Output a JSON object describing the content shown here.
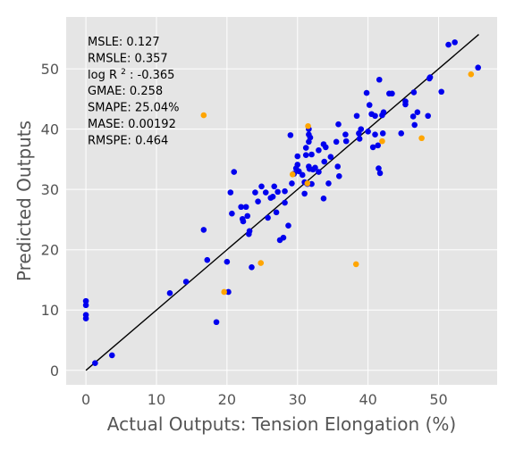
{
  "chart_data": {
    "type": "scatter",
    "title": "",
    "xlabel": "Actual Outputs: Tension Elongation (%)",
    "ylabel": "Predicted Outputs",
    "xlim": [
      -2.8,
      58.3
    ],
    "ylim": [
      -2.4,
      58.6
    ],
    "xticks": [
      0,
      10,
      20,
      30,
      40,
      50
    ],
    "yticks": [
      0,
      10,
      20,
      30,
      40,
      50
    ],
    "grid": true,
    "background": "#e5e5e5",
    "colors": {
      "primary": "#0000ee",
      "secondary": "#ffa500",
      "fit_line": "#000000",
      "grid": "#ffffff"
    },
    "metrics": [
      {
        "name": "MSLE",
        "value": "0.127"
      },
      {
        "name": "RMSLE",
        "value": "0.357"
      },
      {
        "name": "log R",
        "sup": "2",
        "value": "-0.365"
      },
      {
        "name": "GMAE",
        "value": "0.258"
      },
      {
        "name": "SMAPE",
        "value": "25.04%"
      },
      {
        "name": "MASE",
        "value": "0.00192"
      },
      {
        "name": "RMSPE",
        "value": "0.464"
      }
    ],
    "fit_line": {
      "x": [
        0,
        55.7
      ],
      "y": [
        0,
        55.7
      ]
    },
    "series": [
      {
        "color": "#0000ee",
        "points": [
          [
            0.0,
            11.5
          ],
          [
            0.0,
            10.8
          ],
          [
            0.0,
            9.2
          ],
          [
            0.0,
            8.6
          ],
          [
            1.3,
            1.2
          ],
          [
            3.7,
            2.5
          ],
          [
            11.9,
            12.8
          ],
          [
            14.2,
            14.7
          ],
          [
            16.7,
            23.3
          ],
          [
            17.2,
            18.3
          ],
          [
            18.5,
            8.0
          ],
          [
            20.0,
            18.0
          ],
          [
            20.2,
            13.0
          ],
          [
            20.5,
            29.5
          ],
          [
            20.7,
            26.0
          ],
          [
            21.0,
            32.9
          ],
          [
            22.0,
            27.1
          ],
          [
            22.2,
            25.1
          ],
          [
            22.3,
            24.7
          ],
          [
            22.7,
            27.1
          ],
          [
            22.9,
            25.6
          ],
          [
            23.1,
            22.6
          ],
          [
            23.2,
            23.1
          ],
          [
            23.5,
            17.1
          ],
          [
            24.0,
            29.5
          ],
          [
            24.4,
            28.0
          ],
          [
            24.9,
            30.5
          ],
          [
            25.5,
            29.5
          ],
          [
            25.8,
            25.3
          ],
          [
            26.2,
            28.6
          ],
          [
            26.5,
            28.8
          ],
          [
            26.7,
            30.5
          ],
          [
            27.0,
            26.2
          ],
          [
            27.2,
            29.6
          ],
          [
            27.5,
            21.6
          ],
          [
            28.0,
            22.0
          ],
          [
            28.2,
            27.8
          ],
          [
            28.2,
            29.7
          ],
          [
            28.7,
            24.0
          ],
          [
            29.0,
            39.0
          ],
          [
            29.2,
            31.0
          ],
          [
            29.5,
            32.6
          ],
          [
            29.8,
            33.5
          ],
          [
            30.0,
            35.5
          ],
          [
            30.0,
            34.1
          ],
          [
            30.2,
            33.0
          ],
          [
            30.7,
            32.4
          ],
          [
            31.0,
            29.3
          ],
          [
            31.0,
            31.2
          ],
          [
            31.2,
            35.7
          ],
          [
            31.2,
            36.9
          ],
          [
            31.4,
            30.9
          ],
          [
            31.6,
            40.0
          ],
          [
            31.6,
            39.1
          ],
          [
            31.6,
            37.9
          ],
          [
            31.8,
            38.6
          ],
          [
            31.6,
            33.8
          ],
          [
            31.7,
            33.4
          ],
          [
            32.0,
            35.8
          ],
          [
            32.0,
            30.9
          ],
          [
            32.2,
            33.3
          ],
          [
            32.5,
            33.6
          ],
          [
            33.0,
            36.5
          ],
          [
            33.0,
            32.9
          ],
          [
            33.7,
            28.5
          ],
          [
            33.8,
            34.6
          ],
          [
            33.7,
            37.5
          ],
          [
            34.0,
            37.0
          ],
          [
            34.4,
            31.0
          ],
          [
            34.7,
            35.4
          ],
          [
            35.5,
            37.9
          ],
          [
            35.7,
            33.8
          ],
          [
            35.8,
            40.8
          ],
          [
            35.9,
            32.2
          ],
          [
            36.8,
            39.1
          ],
          [
            36.9,
            38.0
          ],
          [
            38.4,
            42.2
          ],
          [
            38.7,
            39.3
          ],
          [
            38.8,
            38.4
          ],
          [
            39.0,
            40.0
          ],
          [
            39.8,
            46.0
          ],
          [
            40.0,
            39.6
          ],
          [
            40.2,
            44.0
          ],
          [
            40.5,
            42.5
          ],
          [
            40.7,
            37.0
          ],
          [
            41.0,
            42.2
          ],
          [
            41.0,
            39.1
          ],
          [
            41.4,
            37.3
          ],
          [
            41.5,
            33.5
          ],
          [
            41.6,
            48.2
          ],
          [
            41.7,
            32.7
          ],
          [
            42.0,
            42.3
          ],
          [
            42.1,
            39.3
          ],
          [
            42.2,
            42.8
          ],
          [
            43.0,
            45.9
          ],
          [
            43.4,
            45.9
          ],
          [
            44.7,
            39.3
          ],
          [
            45.3,
            44.1
          ],
          [
            45.3,
            44.6
          ],
          [
            46.4,
            42.1
          ],
          [
            46.5,
            46.1
          ],
          [
            46.6,
            40.7
          ],
          [
            47.0,
            42.8
          ],
          [
            48.5,
            42.2
          ],
          [
            48.7,
            48.4
          ],
          [
            48.8,
            48.6
          ],
          [
            50.4,
            46.2
          ],
          [
            51.4,
            54.0
          ],
          [
            52.3,
            54.4
          ],
          [
            55.6,
            50.2
          ]
        ]
      },
      {
        "color": "#ffa500",
        "points": [
          [
            16.7,
            42.3
          ],
          [
            19.6,
            13.0
          ],
          [
            24.8,
            17.8
          ],
          [
            29.3,
            32.5
          ],
          [
            31.5,
            40.5
          ],
          [
            31.4,
            31.0
          ],
          [
            38.3,
            17.6
          ],
          [
            42.0,
            38.0
          ],
          [
            47.6,
            38.5
          ],
          [
            54.6,
            49.1
          ]
        ]
      }
    ]
  }
}
